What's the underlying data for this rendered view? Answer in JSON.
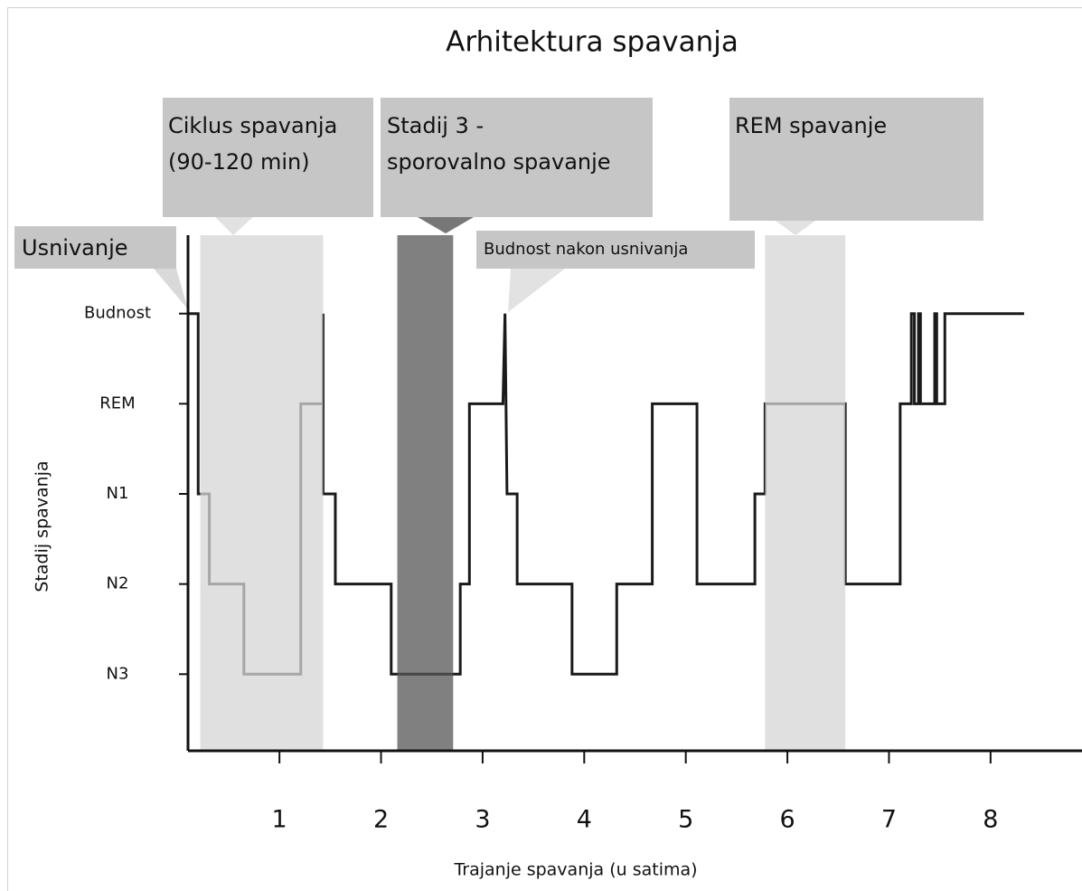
{
  "chart_data": {
    "type": "step-line",
    "title": "Arhitektura spavanja",
    "x_label": "Trajanje spavanja (u satima)",
    "y_label": "Stadij spavanja",
    "xlim": [
      0.1,
      8.9
    ],
    "xticks": [
      1,
      2,
      3,
      4,
      5,
      6,
      7,
      8
    ],
    "ylim": [
      0.15,
      5.87
    ],
    "yticks": [
      {
        "value": 1,
        "label": "N3"
      },
      {
        "value": 2,
        "label": "N2"
      },
      {
        "value": 3,
        "label": "N1"
      },
      {
        "value": 4,
        "label": "REM"
      },
      {
        "value": 5,
        "label": "Budnost"
      }
    ],
    "color": "#1a1a1a",
    "x": [
      0.1,
      0.2,
      0.2,
      0.31,
      0.31,
      0.65,
      0.65,
      1.21,
      1.21,
      1.43,
      1.43,
      1.43,
      1.55,
      1.55,
      2.1,
      2.1,
      2.78,
      2.78,
      2.87,
      2.87,
      3.2,
      3.22,
      3.24,
      3.34,
      3.34,
      3.88,
      3.88,
      4.32,
      4.32,
      4.67,
      4.67,
      5.11,
      5.11,
      5.68,
      5.68,
      5.78,
      5.78,
      6.57,
      6.57,
      7.11,
      7.11,
      7.22,
      7.22,
      7.25,
      7.25,
      7.29,
      7.29,
      7.31,
      7.31,
      7.45,
      7.45,
      7.47,
      7.47,
      7.55,
      7.55,
      8.33
    ],
    "values": [
      5,
      5,
      3,
      3,
      2,
      2,
      1,
      1,
      4,
      4,
      5,
      3,
      3,
      2,
      2,
      1,
      1,
      2,
      2,
      4,
      4,
      5,
      3,
      3,
      2,
      2,
      1,
      1,
      2,
      2,
      4,
      4,
      2,
      2,
      3,
      3,
      4,
      4,
      2,
      2,
      4,
      4,
      5,
      5,
      4,
      4,
      5,
      5,
      4,
      4,
      5,
      5,
      4,
      4,
      5,
      5
    ],
    "bands": [
      {
        "start": 0.22,
        "end": 1.43,
        "color": "#d6d6d6"
      },
      {
        "start": 2.16,
        "end": 2.71,
        "color": "#555555"
      },
      {
        "start": 5.78,
        "end": 6.57,
        "color": "#d6d6d6"
      }
    ],
    "annotations": [
      {
        "lines": [
          "Usnivanje"
        ]
      },
      {
        "lines": [
          "Ciklus spavanja",
          "(90-120 min)"
        ]
      },
      {
        "lines": [
          "Stadij 3 -",
          "sporovalno spavanje"
        ]
      },
      {
        "lines": [
          "Budnost nakon usnivanja"
        ]
      },
      {
        "lines": [
          "REM spavanje"
        ]
      }
    ]
  }
}
